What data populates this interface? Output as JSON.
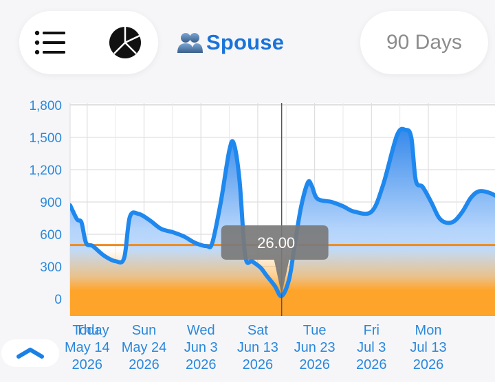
{
  "header": {
    "profile_label": "Spouse",
    "range_label": "90 Days",
    "icons": [
      "menu-icon",
      "pie-chart-icon",
      "people-icon",
      "chevron-up-icon"
    ]
  },
  "colors": {
    "accent": "#1a73d9",
    "line": "#1e88ee",
    "threshold": "#f08a1c",
    "low_band": "#ffa42a"
  },
  "chart_data": {
    "type": "area",
    "ylim": [
      -150,
      1800
    ],
    "y_ticks": [
      0,
      300,
      600,
      900,
      1200,
      1500,
      1800
    ],
    "y_tick_labels": [
      "0",
      "300",
      "600",
      "900",
      "1,200",
      "1,500",
      "1,800"
    ],
    "x_ticks": [
      {
        "day": 0,
        "lines": [
          "Today",
          "",
          ""
        ]
      },
      {
        "day": 3,
        "lines": [
          "Thu",
          "May 14",
          "2026"
        ]
      },
      {
        "day": 13,
        "lines": [
          "Sun",
          "May 24",
          "2026"
        ]
      },
      {
        "day": 23,
        "lines": [
          "Wed",
          "Jun 3",
          "2026"
        ]
      },
      {
        "day": 33,
        "lines": [
          "Sat",
          "Jun 13",
          "2026"
        ]
      },
      {
        "day": 43,
        "lines": [
          "Tue",
          "Jun 23",
          "2026"
        ]
      },
      {
        "day": 53,
        "lines": [
          "Fri",
          "Jul 3",
          "2026"
        ]
      },
      {
        "day": 63,
        "lines": [
          "Mon",
          "Jul 13",
          "2026"
        ]
      }
    ],
    "x_range": [
      0,
      76
    ],
    "threshold": 500,
    "cursor": {
      "day": 37.2,
      "value": 26.0,
      "label": "26.00"
    },
    "series": [
      {
        "points": [
          [
            0,
            870
          ],
          [
            1.2,
            740
          ],
          [
            2,
            710
          ],
          [
            2.8,
            520
          ],
          [
            4,
            490
          ],
          [
            6,
            400
          ],
          [
            8,
            350
          ],
          [
            9.5,
            380
          ],
          [
            10.5,
            760
          ],
          [
            12,
            790
          ],
          [
            14,
            730
          ],
          [
            16,
            650
          ],
          [
            18,
            620
          ],
          [
            20,
            580
          ],
          [
            22,
            520
          ],
          [
            24,
            490
          ],
          [
            25,
            520
          ],
          [
            26.5,
            900
          ],
          [
            28,
            1380
          ],
          [
            28.8,
            1440
          ],
          [
            29.8,
            1100
          ],
          [
            30.8,
            400
          ],
          [
            32,
            350
          ],
          [
            33.5,
            290
          ],
          [
            34.5,
            220
          ],
          [
            36,
            120
          ],
          [
            37.2,
            26
          ],
          [
            38.5,
            180
          ],
          [
            39.5,
            500
          ],
          [
            40.6,
            850
          ],
          [
            41.8,
            1080
          ],
          [
            42.5,
            1050
          ],
          [
            43.5,
            930
          ],
          [
            46,
            900
          ],
          [
            48,
            860
          ],
          [
            50,
            810
          ],
          [
            53,
            810
          ],
          [
            55,
            1050
          ],
          [
            57.5,
            1520
          ],
          [
            59,
            1570
          ],
          [
            60,
            1500
          ],
          [
            60.8,
            1100
          ],
          [
            62,
            1040
          ],
          [
            63.5,
            900
          ],
          [
            64.8,
            760
          ],
          [
            66,
            710
          ],
          [
            67.5,
            720
          ],
          [
            69,
            810
          ],
          [
            70.5,
            940
          ],
          [
            72,
            1000
          ],
          [
            74,
            980
          ],
          [
            76,
            920
          ]
        ]
      }
    ]
  }
}
